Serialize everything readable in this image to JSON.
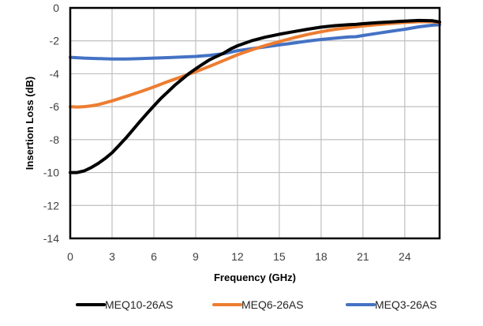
{
  "chart_data": {
    "type": "line",
    "title": "",
    "xlabel": "Frequency (GHz)",
    "ylabel": "Insertion Loss (dB)",
    "xlim": [
      0,
      26.5
    ],
    "ylim": [
      -14,
      0
    ],
    "xticks": [
      0,
      3,
      6,
      9,
      12,
      15,
      18,
      21,
      24
    ],
    "xtick_labels": [
      "0",
      "3",
      "6",
      "9",
      "12",
      "15",
      "18",
      "21",
      "24"
    ],
    "yticks": [
      0,
      -2,
      -4,
      -6,
      -8,
      -10,
      -12,
      -14
    ],
    "ytick_labels": [
      "0",
      "-2",
      "-4",
      "-6",
      "-8",
      "-10",
      "-12",
      "-14"
    ],
    "grid": true,
    "legend_position": "bottom",
    "series": [
      {
        "name": "MEQ10-26AS",
        "color": "#000000",
        "x": [
          0,
          0.5,
          1,
          1.5,
          2,
          2.5,
          3,
          3.5,
          4,
          4.5,
          5,
          5.5,
          6,
          6.5,
          7,
          7.5,
          8,
          8.5,
          9,
          9.5,
          10,
          10.5,
          11,
          11.5,
          12,
          13,
          14,
          15,
          16,
          17,
          18,
          19,
          20,
          20.5,
          21,
          22,
          23,
          24,
          25,
          26,
          26.5
        ],
        "y": [
          -10.0,
          -10.0,
          -9.9,
          -9.7,
          -9.45,
          -9.15,
          -8.8,
          -8.35,
          -7.9,
          -7.4,
          -6.9,
          -6.42,
          -5.95,
          -5.5,
          -5.1,
          -4.7,
          -4.35,
          -4.0,
          -3.7,
          -3.42,
          -3.15,
          -2.95,
          -2.75,
          -2.5,
          -2.3,
          -2.0,
          -1.78,
          -1.6,
          -1.45,
          -1.3,
          -1.17,
          -1.08,
          -1.02,
          -1.0,
          -0.96,
          -0.9,
          -0.85,
          -0.8,
          -0.76,
          -0.78,
          -0.86
        ]
      },
      {
        "name": "MEQ6-26AS",
        "color": "#ED7D31",
        "x": [
          0,
          0.5,
          1,
          1.5,
          2,
          3,
          4,
          5,
          6,
          7,
          8,
          9,
          10,
          11,
          12,
          13,
          14,
          15,
          16,
          17,
          18,
          19,
          20,
          21,
          22,
          23,
          24,
          25,
          26,
          26.5
        ],
        "y": [
          -6.0,
          -6.02,
          -6.0,
          -5.95,
          -5.88,
          -5.65,
          -5.38,
          -5.1,
          -4.8,
          -4.48,
          -4.18,
          -3.88,
          -3.55,
          -3.2,
          -2.85,
          -2.55,
          -2.28,
          -2.05,
          -1.82,
          -1.62,
          -1.45,
          -1.3,
          -1.2,
          -1.1,
          -1.02,
          -0.95,
          -0.88,
          -0.84,
          -0.84,
          -0.9
        ]
      },
      {
        "name": "MEQ3-26AS",
        "color": "#4472C4",
        "x": [
          0,
          1,
          2,
          3,
          4,
          5,
          6,
          7,
          8,
          9,
          10,
          11,
          12,
          13,
          14,
          15,
          16,
          17,
          18,
          19,
          20,
          20.5,
          21,
          22,
          23,
          24,
          25,
          26,
          26.5
        ],
        "y": [
          -3.0,
          -3.05,
          -3.08,
          -3.1,
          -3.1,
          -3.08,
          -3.05,
          -3.02,
          -2.98,
          -2.95,
          -2.88,
          -2.78,
          -2.6,
          -2.48,
          -2.37,
          -2.25,
          -2.14,
          -2.02,
          -1.92,
          -1.84,
          -1.76,
          -1.75,
          -1.68,
          -1.55,
          -1.42,
          -1.3,
          -1.15,
          -1.05,
          -1.02
        ]
      }
    ]
  }
}
